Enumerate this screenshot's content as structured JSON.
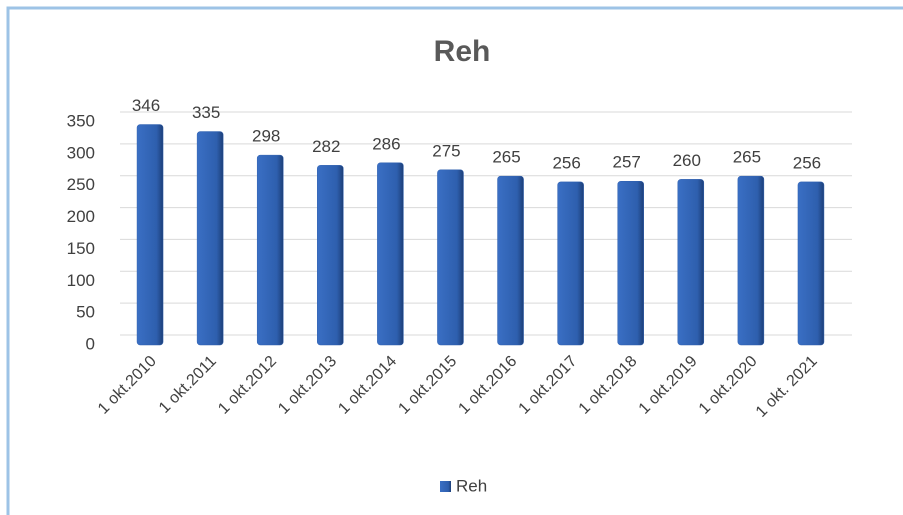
{
  "chart_data": {
    "type": "bar",
    "title": "Reh",
    "categories": [
      "1 okt.2010",
      "1 okt.2011",
      "1 okt.2012",
      "1 okt.2013",
      "1 okt.2014",
      "1 okt.2015",
      "1 okt.2016",
      "1 okt.2017",
      "1 okt.2018",
      "1 okt.2019",
      "1 okt.2020",
      "1 okt. 2021"
    ],
    "series": [
      {
        "name": "Reh",
        "color": "#2e5fae",
        "values": [
          346,
          335,
          298,
          282,
          286,
          275,
          265,
          256,
          257,
          260,
          265,
          256
        ]
      }
    ],
    "ylim": [
      0,
      350
    ],
    "yticks": [
      0,
      50,
      100,
      150,
      200,
      250,
      300,
      350
    ],
    "grid": true,
    "legend": "bottom"
  }
}
